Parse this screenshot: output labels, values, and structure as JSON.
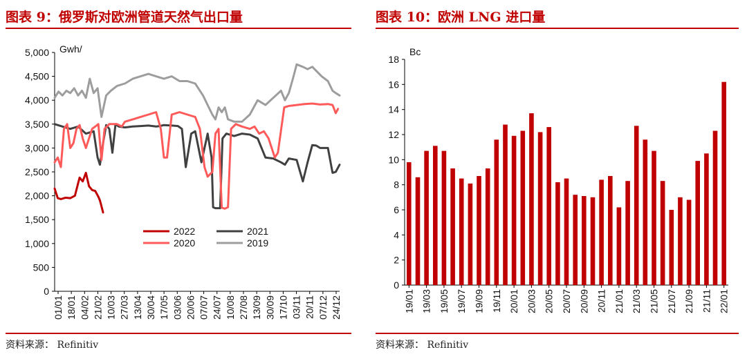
{
  "left": {
    "title": "图表 9：俄罗斯对欧洲管道天然气出口量",
    "source": "资料来源： Refinitiv",
    "chart_data": {
      "type": "line",
      "unit_label": "Gwh/",
      "ylim": [
        0,
        5000
      ],
      "yticks": [
        "0",
        "500",
        "1,000",
        "1,500",
        "2,000",
        "2,500",
        "3,000",
        "3,500",
        "4,000",
        "4,500",
        "5,000"
      ],
      "ytick_values": [
        0,
        500,
        1000,
        1500,
        2000,
        2500,
        3000,
        3500,
        4000,
        4500,
        5000
      ],
      "xtick_labels": [
        "01/01",
        "18/01",
        "04/02",
        "21/02",
        "10/03",
        "27/03",
        "13/04",
        "30/04",
        "17/05",
        "03/06",
        "20/06",
        "07/07",
        "24/07",
        "10/08",
        "27/08",
        "13/09",
        "30/09",
        "17/10",
        "03/11",
        "20/11",
        "07/12",
        "24/12"
      ],
      "x_domain": [
        0,
        365
      ],
      "series": [
        {
          "name": "2022",
          "color": "#c00000",
          "x": [
            0,
            4,
            8,
            14,
            20,
            26,
            30,
            32,
            36,
            40,
            44,
            48,
            52,
            56,
            58,
            60,
            62
          ],
          "values": [
            2150,
            1950,
            1930,
            1960,
            1950,
            2000,
            2260,
            2380,
            2300,
            2480,
            2200,
            2120,
            2100,
            1980,
            1900,
            1780,
            1650
          ]
        },
        {
          "name": "2021",
          "color": "#404040",
          "x": [
            0,
            10,
            20,
            30,
            40,
            50,
            55,
            58,
            62,
            66,
            70,
            74,
            78,
            82,
            90,
            100,
            110,
            120,
            130,
            135,
            140,
            150,
            158,
            163,
            168,
            175,
            180,
            188,
            196,
            201,
            203,
            206,
            212,
            215,
            220,
            230,
            240,
            250,
            260,
            270,
            280,
            290,
            295,
            300,
            310,
            318,
            324,
            330,
            335,
            340,
            350,
            356,
            360,
            365
          ],
          "values": [
            3500,
            3450,
            3400,
            3450,
            3300,
            3350,
            2800,
            2650,
            3100,
            3480,
            3400,
            2900,
            3500,
            3450,
            3430,
            3450,
            3460,
            3470,
            3450,
            3460,
            3480,
            3470,
            3460,
            3400,
            2600,
            3300,
            3350,
            2700,
            3300,
            2800,
            1760,
            1740,
            1740,
            3200,
            3300,
            3250,
            3300,
            3280,
            3200,
            2800,
            2780,
            2700,
            2650,
            2780,
            2750,
            2300,
            2700,
            3060,
            3050,
            3000,
            3000,
            2480,
            2500,
            2650
          ]
        },
        {
          "name": "2020",
          "color": "#ff5a5a",
          "x": [
            0,
            4,
            8,
            12,
            16,
            20,
            24,
            28,
            32,
            36,
            40,
            48,
            52,
            56,
            60,
            64,
            70,
            80,
            86,
            90,
            100,
            110,
            120,
            130,
            136,
            140,
            144,
            150,
            160,
            170,
            180,
            186,
            192,
            196,
            202,
            206,
            210,
            214,
            218,
            222,
            226,
            232,
            240,
            250,
            256,
            262,
            268,
            274,
            282,
            286,
            294,
            300,
            310,
            320,
            330,
            340,
            350,
            356,
            360,
            363
          ],
          "values": [
            2700,
            2800,
            2600,
            3400,
            3500,
            3000,
            3100,
            3400,
            3480,
            3200,
            3000,
            3400,
            3450,
            3500,
            2750,
            3400,
            3500,
            3500,
            3450,
            3550,
            3600,
            3650,
            3700,
            3750,
            3400,
            2800,
            2800,
            3700,
            3750,
            3700,
            3650,
            3400,
            2600,
            2400,
            2500,
            3300,
            3400,
            1750,
            1730,
            1760,
            3400,
            3500,
            3450,
            3400,
            3450,
            3300,
            3350,
            3200,
            2800,
            2900,
            3850,
            3880,
            3900,
            3920,
            3930,
            3910,
            3920,
            3900,
            3730,
            3820
          ]
        },
        {
          "name": "2019",
          "color": "#9d9d9d",
          "x": [
            0,
            5,
            10,
            15,
            20,
            25,
            30,
            35,
            40,
            45,
            50,
            55,
            60,
            66,
            72,
            80,
            90,
            100,
            110,
            120,
            130,
            140,
            150,
            160,
            170,
            180,
            190,
            196,
            202,
            206,
            210,
            214,
            218,
            222,
            230,
            240,
            250,
            260,
            270,
            280,
            290,
            295,
            300,
            306,
            310,
            318,
            324,
            330,
            336,
            342,
            350,
            356,
            360,
            365
          ],
          "values": [
            4050,
            4180,
            4100,
            4200,
            4150,
            4250,
            4100,
            4200,
            4050,
            4450,
            4150,
            4250,
            3650,
            4100,
            4200,
            4300,
            4350,
            4450,
            4500,
            4550,
            4500,
            4450,
            4500,
            4400,
            4400,
            4350,
            4100,
            3900,
            3700,
            3600,
            3850,
            3750,
            3850,
            3600,
            3550,
            3550,
            3700,
            4000,
            3900,
            4050,
            4200,
            4000,
            4150,
            4500,
            4750,
            4700,
            4650,
            4700,
            4600,
            4500,
            4400,
            4200,
            4150,
            4100
          ]
        }
      ]
    }
  },
  "right": {
    "title": "图表 10：欧洲 LNG 进口量",
    "source": "资料来源： Refinitiv",
    "chart_data": {
      "type": "bar",
      "unit_label": "Bc",
      "color": "#c00000",
      "ylim": [
        0,
        18
      ],
      "yticks": [
        "0",
        "2",
        "4",
        "6",
        "8",
        "10",
        "12",
        "14",
        "16",
        "18"
      ],
      "ytick_values": [
        0,
        2,
        4,
        6,
        8,
        10,
        12,
        14,
        16,
        18
      ],
      "categories": [
        "19/01",
        "19/02",
        "19/03",
        "19/04",
        "19/05",
        "19/06",
        "19/07",
        "19/08",
        "19/09",
        "19/10",
        "19/11",
        "19/12",
        "20/01",
        "20/02",
        "20/03",
        "20/04",
        "20/05",
        "20/06",
        "20/07",
        "20/08",
        "20/09",
        "20/10",
        "20/11",
        "20/12",
        "21/01",
        "21/02",
        "21/03",
        "21/04",
        "21/05",
        "21/06",
        "21/07",
        "21/08",
        "21/09",
        "21/10",
        "21/11",
        "21/12",
        "22/01"
      ],
      "values": [
        9.8,
        8.6,
        10.7,
        11.1,
        10.7,
        9.3,
        8.5,
        8.1,
        8.7,
        9.3,
        11.6,
        12.8,
        11.9,
        12.3,
        13.7,
        12.2,
        12.6,
        8.2,
        8.5,
        7.2,
        7.1,
        7.0,
        8.4,
        8.7,
        6.2,
        8.3,
        12.7,
        11.6,
        10.7,
        8.3,
        6.0,
        7.0,
        6.8,
        9.9,
        10.5,
        12.3,
        16.2
      ],
      "xtick_labels": [
        "19/01",
        "19/03",
        "19/05",
        "19/07",
        "19/09",
        "19/11",
        "20/01",
        "20/03",
        "20/05",
        "20/07",
        "20/09",
        "20/11",
        "21/01",
        "21/03",
        "21/05",
        "21/07",
        "21/09",
        "21/11",
        "22/01"
      ]
    }
  }
}
